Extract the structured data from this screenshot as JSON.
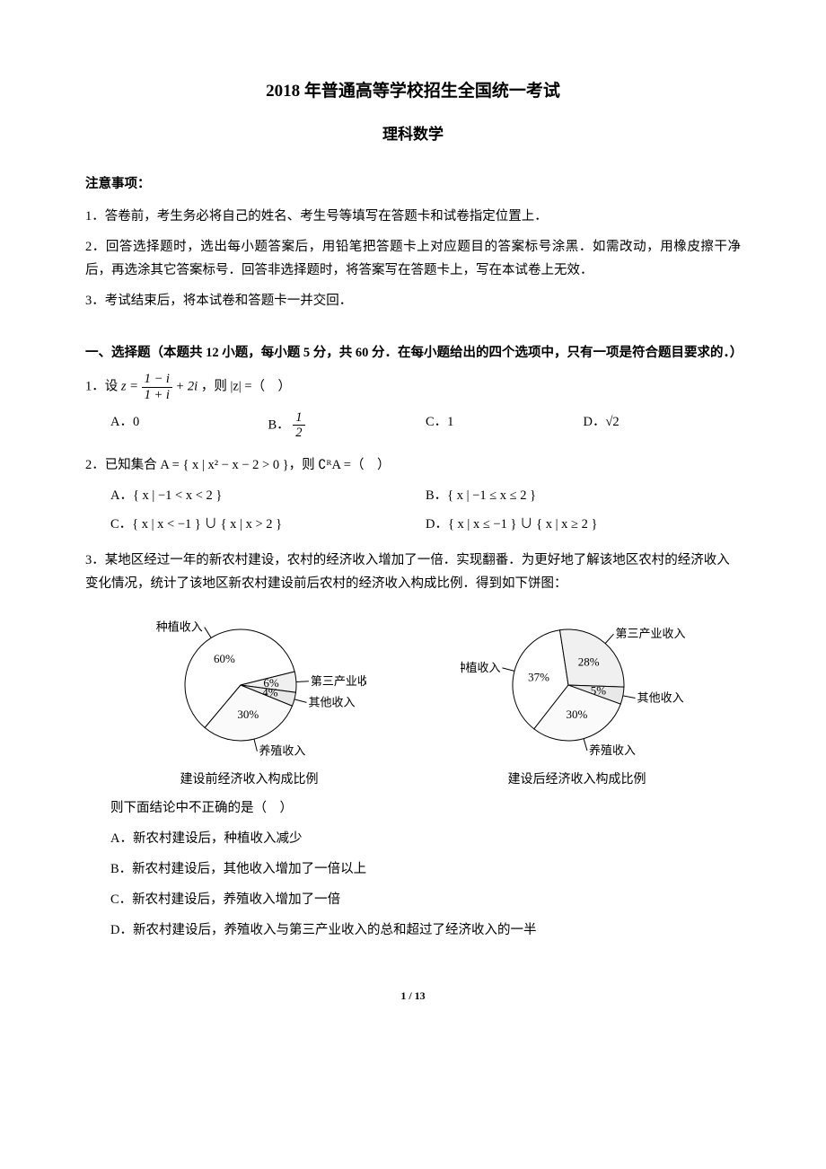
{
  "title": "2018 年普通高等学校招生全国统一考试",
  "subtitle": "理科数学",
  "notice_heading": "注意事项：",
  "notices": [
    "1．答卷前，考生务必将自己的姓名、考生号等填写在答题卡和试卷指定位置上．",
    "2．回答选择题时，选出每小题答案后，用铅笔把答题卡上对应题目的答案标号涂黑．如需改动，用橡皮擦干净后，再选涂其它答案标号．回答非选择题时，将答案写在答题卡上，写在本试卷上无效．",
    "3．考试结束后，将本试卷和答题卡一并交回．"
  ],
  "section1": "一、选择题（本题共 12 小题，每小题 5 分，共 60 分．在每小题给出的四个选项中，只有一项是符合题目要求的．）",
  "q1": {
    "stem_pre": "1．设 ",
    "stem_mid": "，则 |z| =（ ）",
    "frac_num": "1 − i",
    "frac_den": "1 + i",
    "z_eq": "z =",
    "plus": " + 2i",
    "A": "A．0",
    "B_pre": "B．",
    "B_num": "1",
    "B_den": "2",
    "C": "C．1",
    "D": "D．√2"
  },
  "q2": {
    "stem": "2．已知集合 A = { x | x² − x − 2 > 0 }，则 ∁ᴿA =（ ）",
    "A": "A．{ x | −1 < x < 2 }",
    "B": "B．{ x | −1 ≤ x ≤ 2 }",
    "C": "C．{ x | x < −1 } ∪ { x | x > 2 }",
    "D": "D．{ x | x ≤ −1 } ∪ { x | x ≥ 2 }"
  },
  "q3": {
    "stem1": "3．某地区经过一年的新农村建设，农村的经济收入增加了一倍．实现翻番．为更好地了解该地区农村的经济收入变化情况，统计了该地区新农村建设前后农村的经济收入构成比例．得到如下饼图：",
    "stem2": "则下面结论中不正确的是（ ）",
    "A": "A．新农村建设后，种植收入减少",
    "B": "B．新农村建设后，其他收入增加了一倍以上",
    "C": "C．新农村建设后，养殖收入增加了一倍",
    "D": "D．新农村建设后，养殖收入与第三产业收入的总和超过了经济收入的一半"
  },
  "pie_before": {
    "caption": "建设前经济收入构成比例",
    "slices": [
      {
        "label": "种植收入",
        "pct": "60%",
        "value": 60,
        "color": "#ffffff"
      },
      {
        "label": "第三产业收入",
        "pct": "6%",
        "value": 6,
        "color": "#f0f0f0"
      },
      {
        "label": "其他收入",
        "pct": "4%",
        "value": 4,
        "color": "#e8e8e8"
      },
      {
        "label": "养殖收入",
        "pct": "30%",
        "value": 30,
        "color": "#fafafa"
      }
    ],
    "border_color": "#000000",
    "background": "#ffffff",
    "label_fontsize": 13
  },
  "pie_after": {
    "caption": "建设后经济收入构成比例",
    "slices": [
      {
        "label": "种植收入",
        "pct": "37%",
        "value": 37,
        "color": "#ffffff"
      },
      {
        "label": "第三产业收入",
        "pct": "28%",
        "value": 28,
        "color": "#f0f0f0"
      },
      {
        "label": "其他收入",
        "pct": "5%",
        "value": 5,
        "color": "#e8e8e8"
      },
      {
        "label": "养殖收入",
        "pct": "30%",
        "value": 30,
        "color": "#fafafa"
      }
    ],
    "border_color": "#000000",
    "background": "#ffffff",
    "label_fontsize": 13
  },
  "page_number": "1 / 13"
}
